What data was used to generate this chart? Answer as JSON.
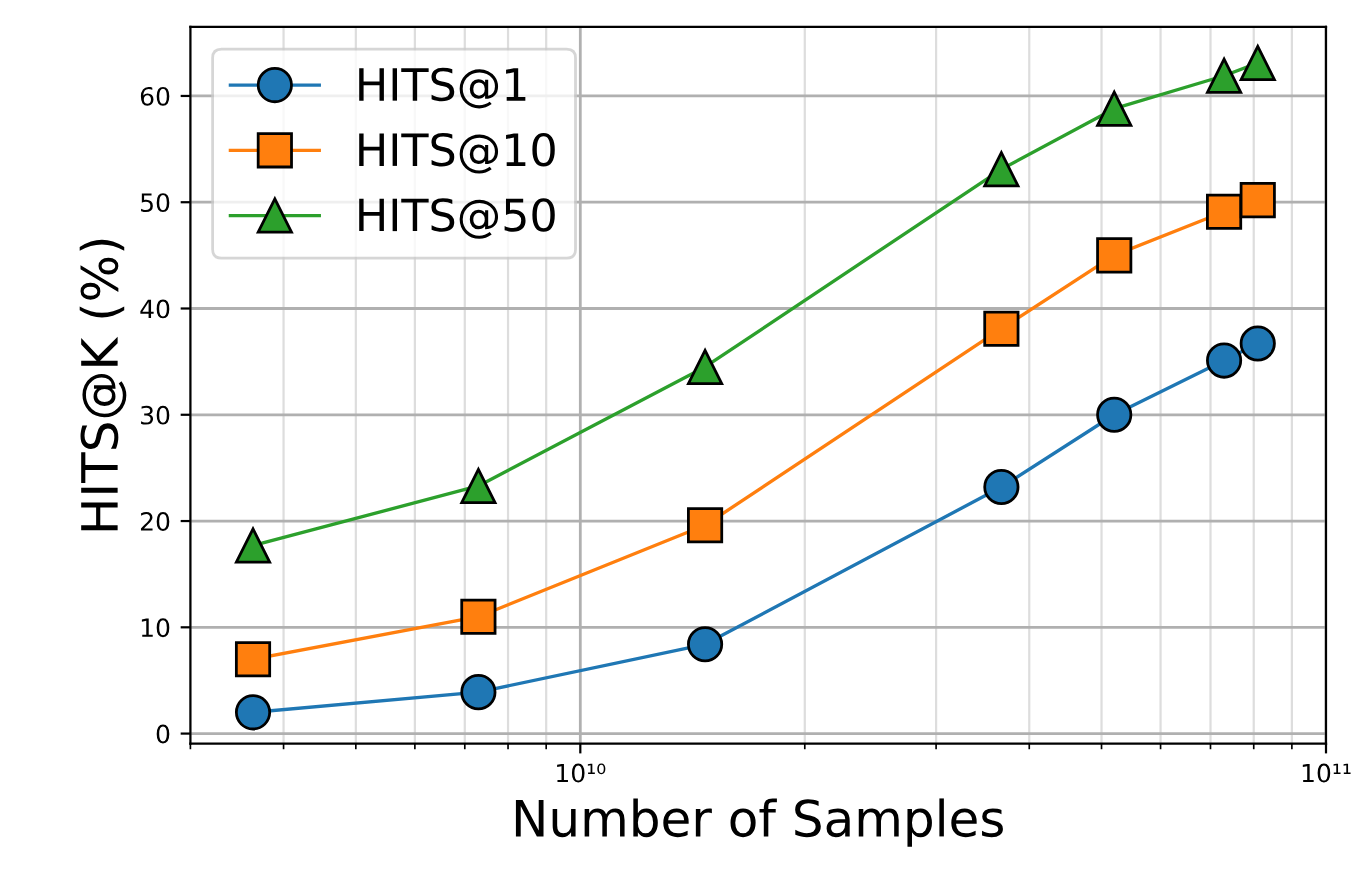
{
  "chart_data": {
    "type": "line",
    "xlabel": "Number of Samples",
    "ylabel": "HITS@K (%)",
    "log": "x",
    "x": [
      3640000000.0,
      7300000000.0,
      14700000000.0,
      36700000000.0,
      52000000000.0,
      73000000000.0,
      81000000000.0
    ],
    "xlim": [
      3000000000.0,
      100000000000.0
    ],
    "xticks": [
      {
        "value": 10000000000.0,
        "label": "10¹⁰"
      },
      {
        "value": 100000000000.0,
        "label": "10¹¹"
      }
    ],
    "ylim": [
      -0.95,
      66.5
    ],
    "yticks": [
      0,
      10,
      20,
      30,
      40,
      50,
      60
    ],
    "grid": true,
    "legend": "top left",
    "line_style": "solid",
    "series": [
      {
        "name": "HITS@1",
        "color": "#1f77b4",
        "marker": "circle",
        "values": [
          2.0,
          3.9,
          8.4,
          23.2,
          30.0,
          35.1,
          36.7
        ]
      },
      {
        "name": "HITS@10",
        "color": "#ff7f0e",
        "marker": "square",
        "values": [
          7.0,
          11.0,
          19.6,
          38.1,
          45.0,
          49.1,
          50.2
        ]
      },
      {
        "name": "HITS@50",
        "color": "#2ca02c",
        "marker": "triangle",
        "values": [
          17.7,
          23.3,
          34.5,
          53.1,
          58.8,
          61.9,
          63.1
        ]
      }
    ]
  }
}
